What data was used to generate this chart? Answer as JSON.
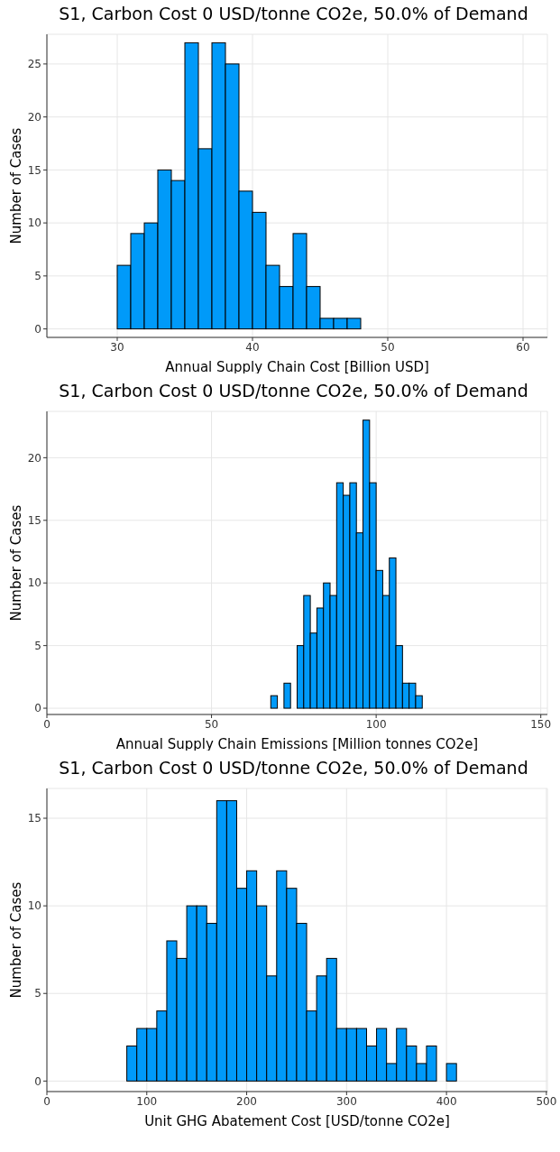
{
  "chart_data": [
    {
      "type": "histogram",
      "title": "S1, Carbon Cost 0 USD/tonne CO2e, 50.0% of Demand",
      "xlabel": "Annual Supply Chain Cost [Billion USD]",
      "ylabel": "Number of Cases",
      "color": "#009af9",
      "grid": true,
      "bins": [
        30,
        31,
        32,
        33,
        34,
        35,
        36,
        37,
        38,
        39,
        40,
        41,
        42,
        43,
        44,
        45,
        46,
        47,
        48
      ],
      "values": [
        6,
        9,
        10,
        15,
        14,
        27,
        17,
        27,
        25,
        13,
        11,
        6,
        4,
        9,
        4,
        1,
        1,
        1
      ],
      "xlim": [
        24.8,
        61.8
      ],
      "xticks": [
        30,
        40,
        50,
        60
      ],
      "ylim": [
        -0.8,
        27.8
      ],
      "yticks": [
        0,
        5,
        10,
        15,
        20,
        25
      ]
    },
    {
      "type": "histogram",
      "title": "S1, Carbon Cost 0 USD/tonne CO2e, 50.0% of Demand",
      "xlabel": "Annual Supply Chain Emissions [Million tonnes CO2e]",
      "ylabel": "Number of Cases",
      "color": "#009af9",
      "grid": true,
      "bins": [
        68,
        70,
        72,
        74,
        76,
        78,
        80,
        82,
        84,
        86,
        88,
        90,
        92,
        94,
        96,
        98,
        100,
        102,
        104,
        106,
        108,
        110,
        112,
        114
      ],
      "values": [
        1,
        0,
        2,
        0,
        5,
        9,
        6,
        8,
        10,
        9,
        18,
        17,
        18,
        14,
        23,
        18,
        11,
        9,
        12,
        5,
        2,
        2,
        1
      ],
      "xlim": [
        0,
        152
      ],
      "xticks": [
        0,
        50,
        100,
        150
      ],
      "ylim": [
        -0.5,
        23.7
      ],
      "yticks": [
        0,
        5,
        10,
        15,
        20
      ]
    },
    {
      "type": "histogram",
      "title": "S1, Carbon Cost 0 USD/tonne CO2e, 50.0% of Demand",
      "xlabel": "Unit GHG Abatement Cost [USD/tonne CO2e]",
      "ylabel": "Number of Cases",
      "color": "#009af9",
      "grid": true,
      "bins": [
        80,
        90,
        100,
        110,
        120,
        130,
        140,
        150,
        160,
        170,
        180,
        190,
        200,
        210,
        220,
        230,
        240,
        250,
        260,
        270,
        280,
        290,
        300,
        310,
        320,
        330,
        340,
        350,
        360,
        370,
        380,
        390,
        400,
        410
      ],
      "values": [
        2,
        3,
        3,
        4,
        8,
        7,
        10,
        10,
        9,
        16,
        16,
        11,
        12,
        10,
        6,
        12,
        11,
        9,
        4,
        6,
        7,
        3,
        3,
        3,
        2,
        3,
        1,
        3,
        2,
        1,
        2,
        0,
        1
      ],
      "xlim": [
        0,
        501
      ],
      "xticks": [
        0,
        100,
        200,
        300,
        400,
        500
      ],
      "ylim": [
        -0.6,
        16.7
      ],
      "yticks": [
        0,
        5,
        10,
        15
      ]
    }
  ]
}
